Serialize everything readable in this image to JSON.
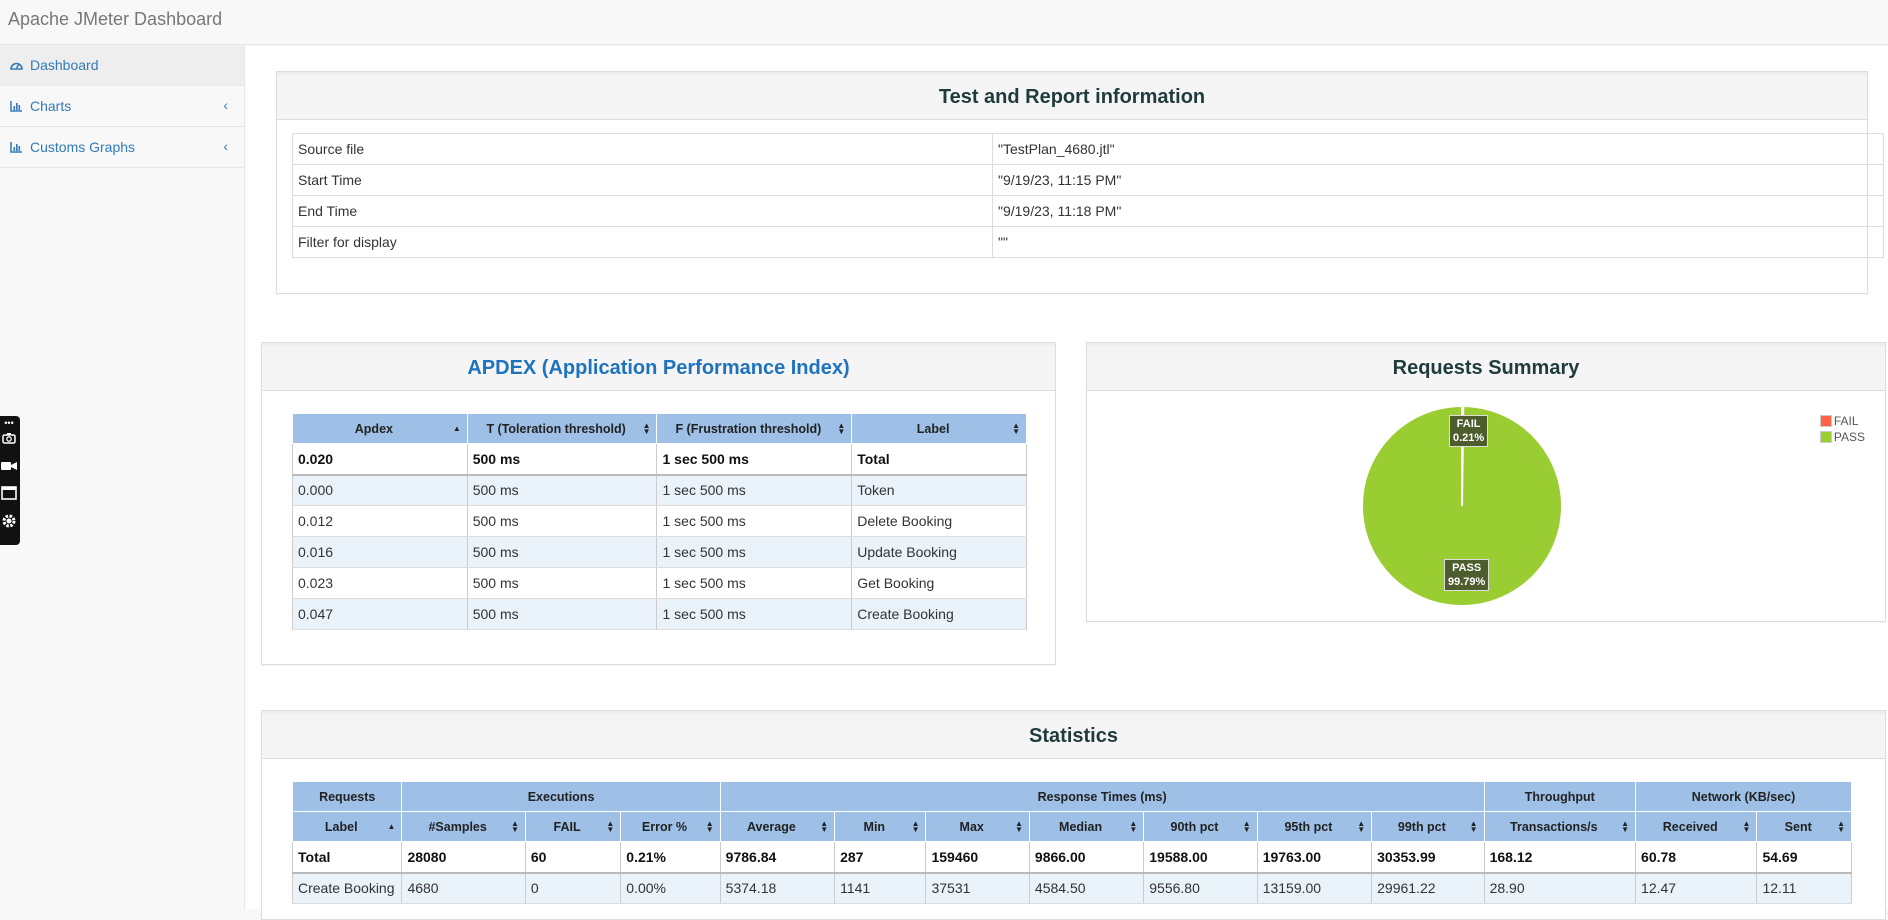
{
  "app": {
    "title": "Apache JMeter Dashboard"
  },
  "sidebar": {
    "items": [
      {
        "label": "Dashboard",
        "icon": "dashboard-icon",
        "active": true
      },
      {
        "label": "Charts",
        "icon": "bar-chart-icon",
        "expandable": true
      },
      {
        "label": "Customs Graphs",
        "icon": "bar-chart-icon",
        "expandable": true
      }
    ]
  },
  "report_info": {
    "title": "Test and Report information",
    "rows": [
      {
        "label": "Source file",
        "value": "\"TestPlan_4680.jtl\""
      },
      {
        "label": "Start Time",
        "value": "\"9/19/23, 11:15 PM\""
      },
      {
        "label": "End Time",
        "value": "\"9/19/23, 11:18 PM\""
      },
      {
        "label": "Filter for display",
        "value": "\"\""
      }
    ]
  },
  "apdex": {
    "title": "APDEX (Application Performance Index)",
    "columns": [
      "Apdex",
      "T (Toleration threshold)",
      "F (Frustration threshold)",
      "Label"
    ],
    "rows": [
      [
        "0.020",
        "500 ms",
        "1 sec 500 ms",
        "Total"
      ],
      [
        "0.000",
        "500 ms",
        "1 sec 500 ms",
        "Token"
      ],
      [
        "0.012",
        "500 ms",
        "1 sec 500 ms",
        "Delete Booking"
      ],
      [
        "0.016",
        "500 ms",
        "1 sec 500 ms",
        "Update Booking"
      ],
      [
        "0.023",
        "500 ms",
        "1 sec 500 ms",
        "Get Booking"
      ],
      [
        "0.047",
        "500 ms",
        "1 sec 500 ms",
        "Create Booking"
      ]
    ]
  },
  "requests_summary": {
    "title": "Requests Summary",
    "legend": [
      {
        "label": "FAIL",
        "color": "#ff6347"
      },
      {
        "label": "PASS",
        "color": "#9acd32"
      }
    ],
    "slice_labels": {
      "fail": {
        "name": "FAIL",
        "value": "0.21%"
      },
      "pass": {
        "name": "PASS",
        "value": "99.79%"
      }
    }
  },
  "chart_data": {
    "type": "pie",
    "title": "Requests Summary",
    "categories": [
      "FAIL",
      "PASS"
    ],
    "values": [
      0.21,
      99.79
    ],
    "colors": [
      "#ff6347",
      "#9acd32"
    ],
    "legend": "top-right"
  },
  "statistics": {
    "title": "Statistics",
    "groups": [
      {
        "label": "Requests",
        "span": 1
      },
      {
        "label": "Executions",
        "span": 3
      },
      {
        "label": "Response Times (ms)",
        "span": 7
      },
      {
        "label": "Throughput",
        "span": 1
      },
      {
        "label": "Network (KB/sec)",
        "span": 2
      }
    ],
    "columns": [
      "Label",
      "#Samples",
      "FAIL",
      "Error %",
      "Average",
      "Min",
      "Max",
      "Median",
      "90th pct",
      "95th pct",
      "99th pct",
      "Transactions/s",
      "Received",
      "Sent"
    ],
    "rows": [
      [
        "Total",
        "28080",
        "60",
        "0.21%",
        "9786.84",
        "287",
        "159460",
        "9866.00",
        "19588.00",
        "19763.00",
        "30353.99",
        "168.12",
        "60.78",
        "54.69"
      ],
      [
        "Create Booking",
        "4680",
        "0",
        "0.00%",
        "5374.18",
        "1141",
        "37531",
        "4584.50",
        "9556.80",
        "13159.00",
        "29961.22",
        "28.90",
        "12.47",
        "12.11"
      ]
    ]
  },
  "colors": {
    "link": "#337ab7",
    "table_header": "#9ec0e6",
    "pass": "#9acd32",
    "fail": "#ff6347"
  }
}
